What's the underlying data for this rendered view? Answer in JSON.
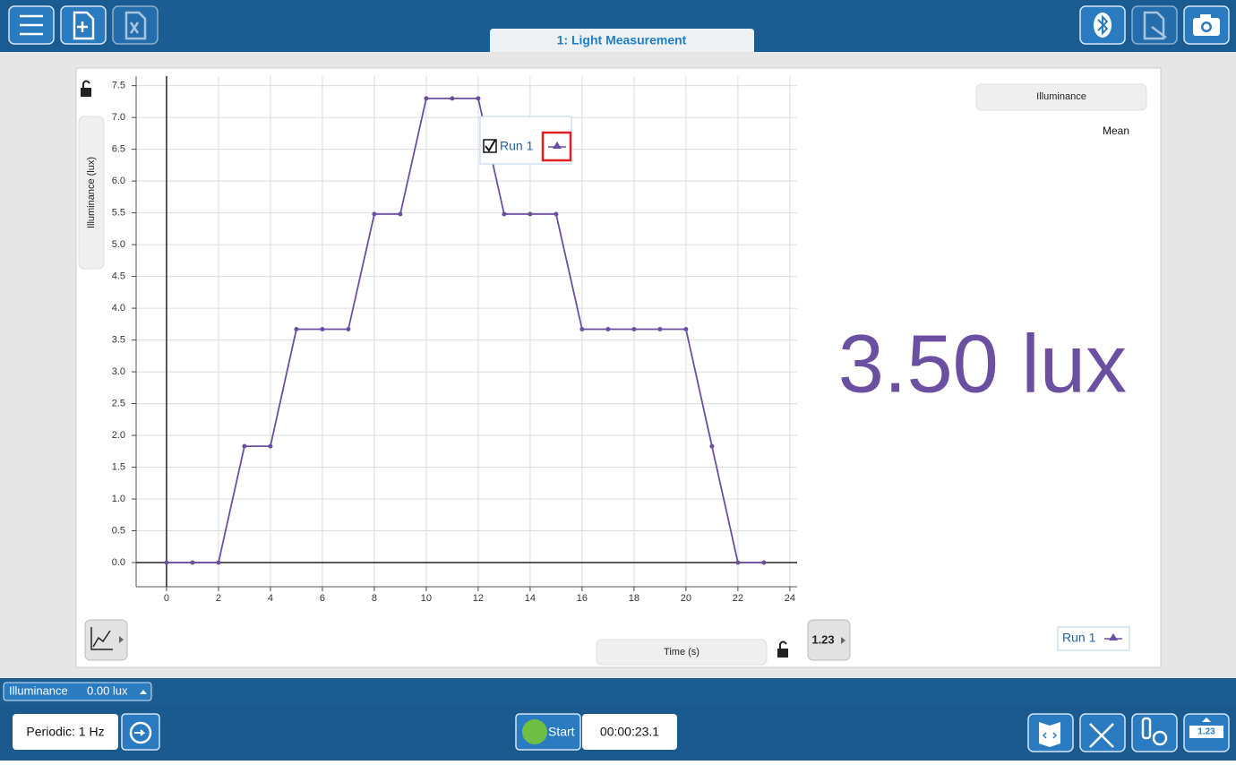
{
  "tab": {
    "title": "1: Light Measurement"
  },
  "graph": {
    "type": "line",
    "y_label": "Illuminance (lux)",
    "x_label": "Time (s)",
    "x": [
      0,
      1,
      2,
      3,
      4,
      5,
      6,
      7,
      8,
      9,
      10,
      11,
      12,
      13,
      14,
      15,
      16,
      17,
      18,
      19,
      20,
      21,
      22,
      23
    ],
    "series": [
      {
        "name": "Run 1",
        "color": "#6b4fa0",
        "values": [
          0,
          0,
          0,
          1.83,
          1.83,
          3.67,
          3.67,
          3.67,
          5.48,
          5.48,
          7.3,
          7.3,
          7.3,
          5.48,
          5.48,
          5.48,
          3.67,
          3.67,
          3.67,
          3.67,
          3.67,
          1.83,
          0,
          0
        ]
      }
    ],
    "xlim": [
      -1.17,
      24.28
    ],
    "ylim": [
      -0.38,
      7.65
    ],
    "xticks": [
      0,
      2,
      4,
      6,
      8,
      10,
      12,
      14,
      16,
      18,
      20,
      22,
      24
    ],
    "yticks": [
      {
        "value": 0,
        "label": "0.0"
      },
      0.5,
      {
        "value": 1,
        "label": "1.0"
      },
      1.5,
      {
        "value": 2,
        "label": "2.0"
      },
      2.5,
      {
        "value": 3,
        "label": "3.0"
      },
      3.5,
      {
        "value": 4,
        "label": "4.0"
      },
      4.5,
      {
        "value": 5,
        "label": "5.0"
      },
      5.5,
      {
        "value": 6,
        "label": "6.0"
      },
      6.5,
      {
        "value": 7,
        "label": "7.0"
      },
      7.5
    ],
    "grid": true
  },
  "meter": {
    "title": "Illuminance",
    "statistic": "Mean",
    "reading": "3.50 lux",
    "digits_button": "1.23"
  },
  "status": {
    "sensor": "Illuminance",
    "reading": "0.00 lux"
  },
  "controls": {
    "rate": "Periodic: 1 Hz",
    "start": "Start",
    "timer": "00:00:23.1",
    "meter_icon": "1.23"
  }
}
